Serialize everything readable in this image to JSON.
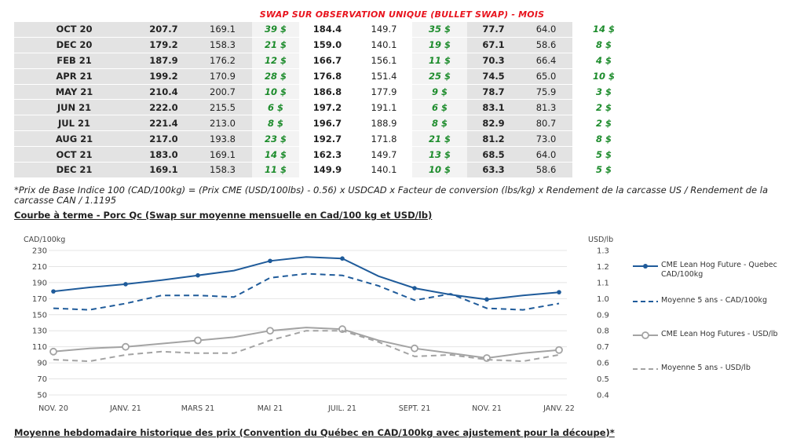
{
  "table": {
    "title": "SWAP SUR OBSERVATION UNIQUE (BULLET SWAP) - MOIS",
    "rows": [
      {
        "month": "OCT 20",
        "c1": "207.7",
        "c2": "169.1",
        "c3": "39 $",
        "c4": "184.4",
        "c5": "149.7",
        "c6": "35 $",
        "c7": "77.7",
        "c8": "64.0",
        "c9": "14 $"
      },
      {
        "month": "DEC 20",
        "c1": "179.2",
        "c2": "158.3",
        "c3": "21 $",
        "c4": "159.0",
        "c5": "140.1",
        "c6": "19 $",
        "c7": "67.1",
        "c8": "58.6",
        "c9": "8 $"
      },
      {
        "month": "FEB 21",
        "c1": "187.9",
        "c2": "176.2",
        "c3": "12 $",
        "c4": "166.7",
        "c5": "156.1",
        "c6": "11 $",
        "c7": "70.3",
        "c8": "66.4",
        "c9": "4 $"
      },
      {
        "month": "APR 21",
        "c1": "199.2",
        "c2": "170.9",
        "c3": "28 $",
        "c4": "176.8",
        "c5": "151.4",
        "c6": "25 $",
        "c7": "74.5",
        "c8": "65.0",
        "c9": "10 $"
      },
      {
        "month": "MAY 21",
        "c1": "210.4",
        "c2": "200.7",
        "c3": "10 $",
        "c4": "186.8",
        "c5": "177.9",
        "c6": "9 $",
        "c7": "78.7",
        "c8": "75.9",
        "c9": "3 $"
      },
      {
        "month": "JUN 21",
        "c1": "222.0",
        "c2": "215.5",
        "c3": "6 $",
        "c4": "197.2",
        "c5": "191.1",
        "c6": "6 $",
        "c7": "83.1",
        "c8": "81.3",
        "c9": "2 $"
      },
      {
        "month": "JUL 21",
        "c1": "221.4",
        "c2": "213.0",
        "c3": "8 $",
        "c4": "196.7",
        "c5": "188.9",
        "c6": "8 $",
        "c7": "82.9",
        "c8": "80.7",
        "c9": "2 $"
      },
      {
        "month": "AUG 21",
        "c1": "217.0",
        "c2": "193.8",
        "c3": "23 $",
        "c4": "192.7",
        "c5": "171.8",
        "c6": "21 $",
        "c7": "81.2",
        "c8": "73.0",
        "c9": "8 $"
      },
      {
        "month": "OCT 21",
        "c1": "183.0",
        "c2": "169.1",
        "c3": "14 $",
        "c4": "162.3",
        "c5": "149.7",
        "c6": "13 $",
        "c7": "68.5",
        "c8": "64.0",
        "c9": "5 $"
      },
      {
        "month": "DEC 21",
        "c1": "169.1",
        "c2": "158.3",
        "c3": "11 $",
        "c4": "149.9",
        "c5": "140.1",
        "c6": "10 $",
        "c7": "63.3",
        "c8": "58.6",
        "c9": "5 $"
      }
    ]
  },
  "footnote": "*Prix de Base Indice 100 (CAD/100kg) = (Prix CME (USD/100lbs) - 0.56) x USDCAD x Facteur de conversion (lbs/kg) x Rendement de la carcasse US / Rendement de la carcasse CAN / 1.1195",
  "chart_section_title": "Courbe à terme - Porc Qc (Swap sur moyenne mensuelle en Cad/100 kg et USD/lb)",
  "bottom_section_title": "Moyenne hebdomadaire historique des prix (Convention du Québec en CAD/100kg avec ajustement pour la découpe)*",
  "colors": {
    "blue": "#1f5b9a",
    "gray": "#a3a3a3",
    "green": "#1d8c2c",
    "red": "#e8141e"
  },
  "chart_data": {
    "type": "line",
    "ylabel_left": "CAD/100kg",
    "ylabel_right": "USD/lb",
    "ylim_left": [
      50,
      230
    ],
    "yticks_left": [
      "50",
      "70",
      "90",
      "110",
      "130",
      "150",
      "170",
      "190",
      "210",
      "230"
    ],
    "ylim_right": [
      0.4,
      1.3
    ],
    "yticks_right": [
      "0.4",
      "0.5",
      "0.6",
      "0.7",
      "0.8",
      "0.9",
      "1.0",
      "1.1",
      "1.2",
      "1.3"
    ],
    "x_tick_labels": [
      "NOV. 20",
      "JANV. 21",
      "MARS 21",
      "MAI 21",
      "JUIL. 21",
      "SEPT. 21",
      "NOV. 21",
      "JANV. 22"
    ],
    "x_tick_positions": [
      0,
      2,
      4,
      6,
      8,
      10,
      12,
      14
    ],
    "grid": "horizontal",
    "legend_position": "right",
    "series": [
      {
        "name": "CME Lean Hog Future - Quebec CAD/100kg",
        "axis": "left",
        "style": "solid-dot",
        "color": "#1f5b9a",
        "values": [
          179,
          184,
          188,
          193,
          199,
          205,
          217,
          222,
          220,
          198,
          183,
          175,
          169,
          174,
          178
        ]
      },
      {
        "name": "Moyenne 5 ans - CAD/100kg",
        "axis": "left",
        "style": "dashed",
        "color": "#1f5b9a",
        "values": [
          158,
          156,
          164,
          174,
          174,
          172,
          196,
          201,
          199,
          186,
          168,
          176,
          158,
          156,
          164
        ]
      },
      {
        "name": "CME Lean Hog Futures - USD/lb",
        "axis": "right",
        "style": "solid-circle",
        "color": "#a3a3a3",
        "values": [
          0.67,
          0.69,
          0.7,
          0.72,
          0.74,
          0.76,
          0.8,
          0.82,
          0.81,
          0.74,
          0.69,
          0.66,
          0.63,
          0.66,
          0.68
        ]
      },
      {
        "name": "Moyenne 5 ans - USD/lb",
        "axis": "right",
        "style": "dashed",
        "color": "#a3a3a3",
        "values": [
          0.62,
          0.61,
          0.65,
          0.67,
          0.66,
          0.66,
          0.74,
          0.8,
          0.8,
          0.73,
          0.64,
          0.65,
          0.62,
          0.61,
          0.65
        ]
      }
    ]
  }
}
